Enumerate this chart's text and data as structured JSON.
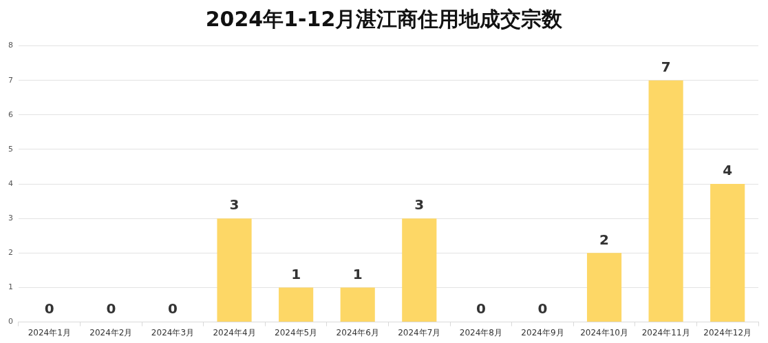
{
  "chart_data": {
    "type": "bar",
    "title": "2024年1-12月湛江商住用地成交宗数",
    "categories": [
      "2024年1月",
      "2024年2月",
      "2024年3月",
      "2024年4月",
      "2024年5月",
      "2024年6月",
      "2024年7月",
      "2024年8月",
      "2024年9月",
      "2024年10月",
      "2024年11月",
      "2024年12月"
    ],
    "values": [
      0,
      0,
      0,
      3,
      1,
      1,
      3,
      0,
      0,
      2,
      7,
      4
    ],
    "color": "#fdd766",
    "ylim": [
      0,
      8
    ],
    "yticks": [
      0,
      1,
      2,
      3,
      4,
      5,
      6,
      7,
      8
    ],
    "grid": "y",
    "data_labels": true,
    "legend": false
  }
}
